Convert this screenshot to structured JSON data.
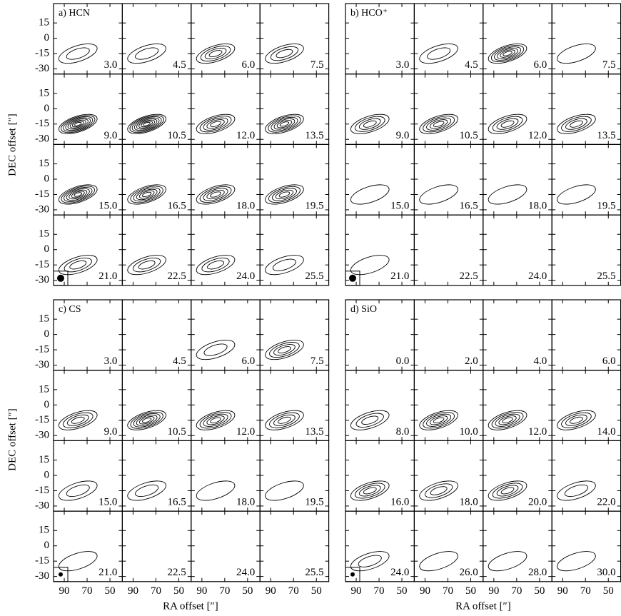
{
  "y_label": "DEC offset [″]",
  "x_label": "RA offset [″]",
  "y_ticks": [
    15,
    0,
    -15,
    -30
  ],
  "x_ticks": [
    90,
    70,
    50
  ],
  "panels": [
    {
      "label": "a) HCN",
      "channels": [
        "3.0",
        "4.5",
        "6.0",
        "7.5",
        "9.0",
        "10.5",
        "12.0",
        "13.5",
        "15.0",
        "16.5",
        "18.0",
        "19.5",
        "21.0",
        "22.5",
        "24.0",
        "25.5"
      ]
    },
    {
      "label": "b) HCO⁺",
      "channels": [
        "3.0",
        "4.5",
        "6.0",
        "7.5",
        "9.0",
        "10.5",
        "12.0",
        "13.5",
        "15.0",
        "16.5",
        "18.0",
        "19.5",
        "21.0",
        "22.5",
        "24.0",
        "25.5"
      ]
    },
    {
      "label": "c) CS",
      "channels": [
        "3.0",
        "4.5",
        "6.0",
        "7.5",
        "9.0",
        "10.5",
        "12.0",
        "13.5",
        "15.0",
        "16.5",
        "18.0",
        "19.5",
        "21.0",
        "22.5",
        "24.0",
        "25.5"
      ]
    },
    {
      "label": "d) SiO",
      "channels": [
        "0.0",
        "2.0",
        "4.0",
        "6.0",
        "8.0",
        "10.0",
        "12.0",
        "14.0",
        "16.0",
        "18.0",
        "20.0",
        "22.0",
        "24.0",
        "26.0",
        "28.0",
        "30.0"
      ]
    }
  ]
}
